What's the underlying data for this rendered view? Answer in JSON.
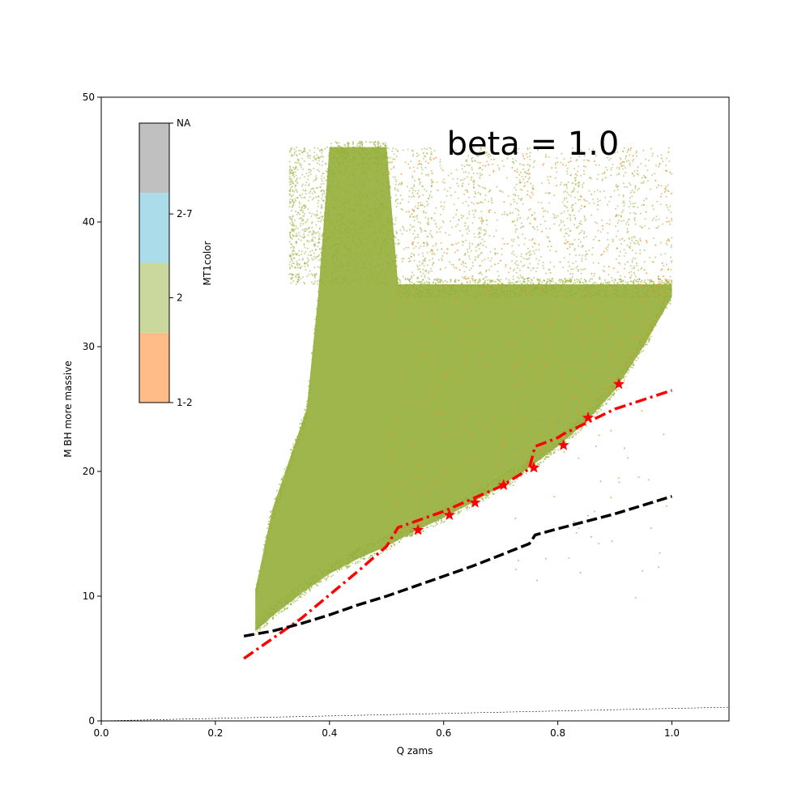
{
  "chart_data": {
    "type": "scatter",
    "xlabel": "Q zams",
    "ylabel": "M BH more massive",
    "xlim": [
      0.0,
      1.1
    ],
    "ylim": [
      0,
      50
    ],
    "x_ticks": [
      "0.0",
      "0.2",
      "0.4",
      "0.6",
      "0.8",
      "1.0"
    ],
    "x_tick_values": [
      0.0,
      0.2,
      0.4,
      0.6,
      0.8,
      1.0
    ],
    "y_ticks": [
      "0",
      "10",
      "20",
      "30",
      "40",
      "50"
    ],
    "y_tick_values": [
      0,
      10,
      20,
      30,
      40,
      50
    ],
    "annotation": "beta = 1.0",
    "colorbar": {
      "label": "MT1color",
      "placement": "upper-left inset",
      "categories": [
        {
          "label": "1-2",
          "color": "#ffbb88"
        },
        {
          "label": "2",
          "color": "#cad89e"
        },
        {
          "label": "2-7",
          "color": "#aadcea"
        },
        {
          "label": "NA",
          "color": "#c0c0c0"
        }
      ],
      "tick_labels": [
        "1-2",
        "2",
        "2-7",
        "NA"
      ]
    },
    "scatter_colors": {
      "main": "#94ae38",
      "secondary": "#ff8c1a",
      "other": "#999999"
    },
    "scatter_envelope": {
      "lower_edge": [
        [
          0.27,
          7.2
        ],
        [
          0.3,
          8.4
        ],
        [
          0.35,
          10.2
        ],
        [
          0.4,
          11.8
        ],
        [
          0.45,
          13.0
        ],
        [
          0.5,
          14.0
        ],
        [
          0.55,
          15.2
        ],
        [
          0.6,
          16.3
        ],
        [
          0.65,
          17.5
        ],
        [
          0.7,
          18.8
        ],
        [
          0.75,
          20.3
        ],
        [
          0.8,
          22.0
        ],
        [
          0.85,
          24.0
        ],
        [
          0.9,
          26.5
        ],
        [
          0.95,
          30.0
        ],
        [
          1.0,
          34.0
        ]
      ],
      "upper_edge": [
        [
          0.27,
          10.5
        ],
        [
          0.3,
          17.0
        ],
        [
          0.33,
          21.0
        ],
        [
          0.36,
          25.0
        ],
        [
          0.38,
          34.0
        ],
        [
          0.4,
          46.0
        ],
        [
          0.5,
          46.0
        ],
        [
          0.52,
          35.0
        ],
        [
          1.0,
          35.0
        ]
      ],
      "sparse_region": {
        "x": [
          0.33,
          1.0
        ],
        "y": [
          35,
          46
        ]
      }
    },
    "series": [
      {
        "style": "dash-dot",
        "color": "#ff0000",
        "x": [
          0.25,
          0.35,
          0.45,
          0.5,
          0.52,
          0.6,
          0.7,
          0.75,
          0.76,
          0.8,
          0.81,
          0.9,
          1.0
        ],
        "y": [
          5.0,
          8.2,
          12.0,
          14.0,
          15.5,
          16.8,
          18.8,
          20.2,
          22.0,
          22.7,
          23.0,
          25.0,
          26.5
        ]
      },
      {
        "style": "dashed",
        "color": "#000000",
        "x": [
          0.25,
          0.3,
          0.35,
          0.4,
          0.45,
          0.5,
          0.55,
          0.6,
          0.65,
          0.7,
          0.75,
          0.755,
          0.76,
          0.8,
          0.9,
          1.0
        ],
        "y": [
          6.8,
          7.2,
          7.8,
          8.5,
          9.3,
          10.0,
          10.8,
          11.6,
          12.4,
          13.3,
          14.2,
          14.5,
          14.9,
          15.4,
          16.6,
          18.0
        ]
      },
      {
        "style": "dotted",
        "color": "#000000",
        "x": [
          0.0,
          1.1
        ],
        "y": [
          0.0,
          1.1
        ]
      },
      {
        "style": "star-markers",
        "color": "#ff0000",
        "x": [
          0.555,
          0.61,
          0.655,
          0.705,
          0.758,
          0.81,
          0.853,
          0.907
        ],
        "y": [
          15.3,
          16.5,
          17.5,
          18.9,
          20.3,
          22.1,
          24.3,
          27.0
        ]
      }
    ]
  }
}
